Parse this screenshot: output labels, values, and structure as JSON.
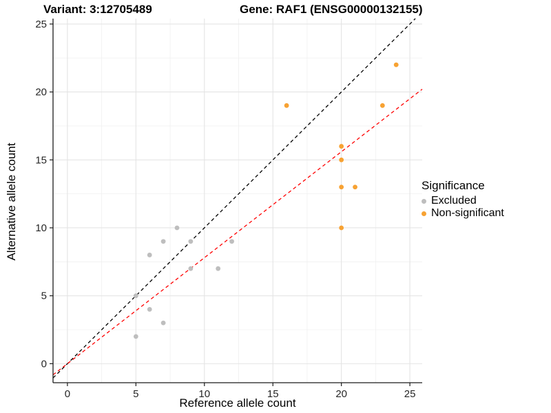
{
  "titles": {
    "variant": "Variant: 3:12705489",
    "gene": "Gene: RAF1 (ENSG00000132155)"
  },
  "chart_data": {
    "type": "scatter",
    "xlabel": "Reference allele count",
    "ylabel": "Alternative allele count",
    "xlim": [
      -1.05,
      25.9
    ],
    "ylim": [
      -1.4,
      25.4
    ],
    "x_ticks": [
      0,
      5,
      10,
      15,
      20,
      25
    ],
    "y_ticks": [
      0,
      5,
      10,
      15,
      20,
      25
    ],
    "x_minor_ticks": [
      2.5,
      7.5,
      12.5,
      17.5,
      22.5
    ],
    "y_minor_ticks": [
      2.5,
      7.5,
      12.5,
      17.5,
      22.5
    ],
    "grid": "on",
    "legend_position": "right",
    "series": [
      {
        "name": "Excluded",
        "color": "#BEBEBE",
        "points": [
          [
            5,
            2
          ],
          [
            5,
            5
          ],
          [
            6,
            4
          ],
          [
            6,
            8
          ],
          [
            7,
            3
          ],
          [
            7,
            9
          ],
          [
            8,
            10
          ],
          [
            9,
            7
          ],
          [
            9,
            9
          ],
          [
            11,
            7
          ],
          [
            12,
            9
          ]
        ]
      },
      {
        "name": "Non-significant",
        "color": "#F7A233",
        "points": [
          [
            16,
            19
          ],
          [
            20,
            10
          ],
          [
            20,
            13
          ],
          [
            20,
            15
          ],
          [
            20,
            16
          ],
          [
            21,
            13
          ],
          [
            23,
            19
          ],
          [
            24,
            22
          ]
        ]
      }
    ],
    "lines": [
      {
        "name": "identity-line",
        "slope": 1,
        "intercept": 0,
        "color": "#000000",
        "dash": "5,4"
      },
      {
        "name": "fit-line",
        "slope": 0.78,
        "intercept": 0,
        "color": "#FF0000",
        "dash": "5,4"
      }
    ]
  },
  "legend": {
    "title": "Significance",
    "items": [
      {
        "label": "Excluded",
        "color": "#BEBEBE"
      },
      {
        "label": "Non-significant",
        "color": "#F7A233"
      }
    ]
  },
  "style_colors": {
    "major_grid": "#E4E4E4",
    "minor_grid": "#F0F0F0",
    "axis_line": "#1A1A1A",
    "tick_label": "#262626"
  }
}
